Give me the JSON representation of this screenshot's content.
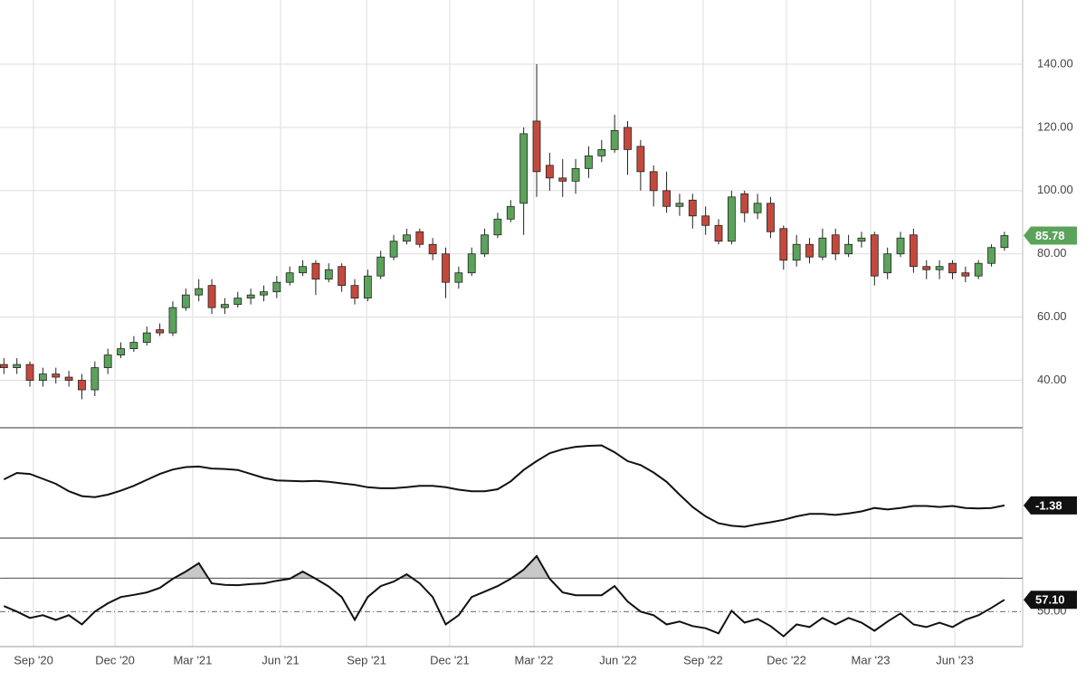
{
  "chart_data": [
    {
      "type": "candlestick",
      "up_color": "#5ba35b",
      "down_color": "#c4493d",
      "grid": true,
      "xlim": [
        -0.3,
        78.4
      ],
      "xticks": [
        {
          "value": 2.28,
          "label": "Sep '20"
        },
        {
          "value": 8.55,
          "label": "Dec '20"
        },
        {
          "value": 14.53,
          "label": "Mar '21"
        },
        {
          "value": 21.29,
          "label": "Jun '21"
        },
        {
          "value": 27.91,
          "label": "Sep '21"
        },
        {
          "value": 34.31,
          "label": "Dec '21"
        },
        {
          "value": 40.79,
          "label": "Mar '22"
        },
        {
          "value": 47.27,
          "label": "Jun '22"
        },
        {
          "value": 53.81,
          "label": "Sep '22"
        },
        {
          "value": 60.22,
          "label": "Dec '22"
        },
        {
          "value": 66.7,
          "label": "Mar '23"
        },
        {
          "value": 73.18,
          "label": "Jun '23"
        }
      ],
      "ylim": [
        25,
        160.3
      ],
      "yticks": [
        {
          "value": 40,
          "label": "40.00"
        },
        {
          "value": 60,
          "label": "60.00"
        },
        {
          "value": 80,
          "label": "80.00"
        },
        {
          "value": 100,
          "label": "100.00"
        },
        {
          "value": 120,
          "label": "120.00"
        },
        {
          "value": 140,
          "label": "140.00"
        }
      ],
      "open": [
        45,
        44,
        45,
        40,
        42,
        41,
        40,
        37,
        44,
        48,
        50,
        52,
        56,
        55,
        63,
        67,
        70,
        63,
        64,
        66,
        67,
        68,
        71,
        74,
        77,
        72,
        76,
        70,
        66,
        73,
        79,
        84,
        87,
        83,
        80,
        71,
        74,
        80,
        86,
        91,
        96,
        122,
        108,
        104,
        103,
        107,
        111,
        113,
        120,
        114,
        106,
        100,
        95,
        97,
        92,
        89,
        84,
        99,
        93,
        96,
        88,
        78,
        83,
        79,
        86,
        80,
        84,
        86,
        74,
        80,
        86,
        76,
        75,
        77,
        74,
        73,
        77,
        82
      ],
      "high": [
        47,
        47,
        46,
        44,
        44,
        43,
        42,
        46,
        50,
        52,
        54,
        57,
        58,
        65,
        69,
        72,
        72,
        66,
        68,
        69,
        70,
        73,
        76,
        78,
        78,
        77,
        77,
        72,
        75,
        81,
        86,
        88,
        88,
        85,
        82,
        76,
        82,
        88,
        93,
        97,
        120,
        140,
        112,
        110,
        110,
        114,
        116,
        124,
        122,
        116,
        108,
        106,
        99,
        99,
        95,
        91,
        100,
        100,
        99,
        98,
        89,
        86,
        85,
        88,
        88,
        86,
        87,
        87,
        82,
        87,
        88,
        78,
        78,
        78,
        76,
        78,
        83,
        87
      ],
      "low": [
        42,
        42,
        38,
        38,
        39,
        38,
        34,
        35,
        42,
        47,
        49,
        51,
        54,
        54,
        62,
        65,
        61,
        61,
        63,
        64,
        65,
        66,
        70,
        73,
        67,
        71,
        68,
        64,
        65,
        72,
        78,
        83,
        82,
        78,
        66,
        69,
        73,
        79,
        85,
        90,
        86,
        98,
        100,
        98,
        99,
        104,
        109,
        112,
        105,
        100,
        95,
        93,
        92,
        88,
        86,
        83,
        83,
        90,
        91,
        85,
        75,
        76,
        77,
        78,
        78,
        79,
        82,
        70,
        72,
        79,
        74,
        72,
        72,
        72,
        71,
        72,
        76,
        81
      ],
      "close": [
        44,
        45,
        40,
        42,
        41,
        40,
        37,
        44,
        48,
        50,
        52,
        55,
        55,
        63,
        67,
        69,
        63,
        64,
        66,
        67,
        68,
        71,
        74,
        76,
        72,
        75,
        70,
        66,
        73,
        79,
        84,
        86,
        83,
        80,
        71,
        74,
        80,
        86,
        91,
        95,
        118,
        106,
        104,
        103,
        107,
        111,
        113,
        119,
        113,
        106,
        100,
        95,
        96,
        92,
        89,
        84,
        98,
        93,
        96,
        87,
        78,
        83,
        79,
        85,
        80,
        83,
        85,
        73,
        80,
        85,
        76,
        75,
        76,
        74,
        73,
        77,
        82,
        85.78
      ]
    },
    {
      "type": "line",
      "color": "#111111",
      "ylim": [
        -8,
        14
      ],
      "values": [
        3.9,
        5.2,
        5.0,
        4.0,
        3.0,
        1.5,
        0.5,
        0.3,
        0.8,
        1.6,
        2.6,
        3.8,
        5.0,
        5.9,
        6.4,
        6.5,
        6.1,
        6.0,
        5.8,
        5.0,
        4.2,
        3.7,
        3.6,
        3.5,
        3.6,
        3.4,
        3.1,
        2.8,
        2.3,
        2.1,
        2.1,
        2.3,
        2.6,
        2.6,
        2.3,
        1.8,
        1.5,
        1.5,
        1.9,
        3.5,
        5.8,
        7.6,
        9.2,
        10.0,
        10.5,
        10.7,
        10.8,
        9.4,
        7.6,
        6.8,
        5.3,
        3.4,
        0.8,
        -1.7,
        -3.6,
        -5.0,
        -5.5,
        -5.7,
        -5.2,
        -4.8,
        -4.3,
        -3.6,
        -3.1,
        -3.1,
        -3.3,
        -3.0,
        -2.6,
        -1.9,
        -2.2,
        -1.9,
        -1.5,
        -1.5,
        -1.7,
        -1.5,
        -1.9,
        -2.0,
        -1.9,
        -1.38
      ]
    },
    {
      "type": "line",
      "color": "#111111",
      "ylim": [
        29,
        93
      ],
      "upper_band": 70,
      "yticks": [
        {
          "value": 50,
          "label": "50.00"
        }
      ],
      "last_value_label": "57.10",
      "values": [
        53.3,
        50.0,
        46.2,
        47.8,
        45.0,
        47.8,
        42.3,
        50.0,
        55.0,
        58.7,
        60.0,
        61.5,
        64.2,
        69.7,
        74.0,
        79.0,
        66.9,
        66.0,
        65.8,
        66.5,
        66.9,
        68.5,
        69.7,
        74.0,
        69.7,
        65.0,
        58.7,
        45.1,
        58.7,
        65.3,
        68.0,
        72.4,
        66.9,
        58.7,
        42.3,
        47.8,
        58.7,
        62.0,
        65.3,
        69.7,
        75.1,
        83.3,
        69.7,
        61.5,
        59.8,
        59.8,
        59.8,
        65.3,
        56.0,
        50.0,
        47.8,
        42.3,
        44.0,
        41.3,
        40.0,
        36.9,
        50.5,
        43.4,
        45.6,
        41.3,
        35.2,
        42.3,
        40.7,
        46.2,
        42.3,
        46.2,
        43.4,
        38.5,
        44.0,
        48.9,
        42.3,
        40.7,
        43.4,
        40.7,
        45.1,
        47.8,
        52.2,
        57.1
      ]
    }
  ]
}
